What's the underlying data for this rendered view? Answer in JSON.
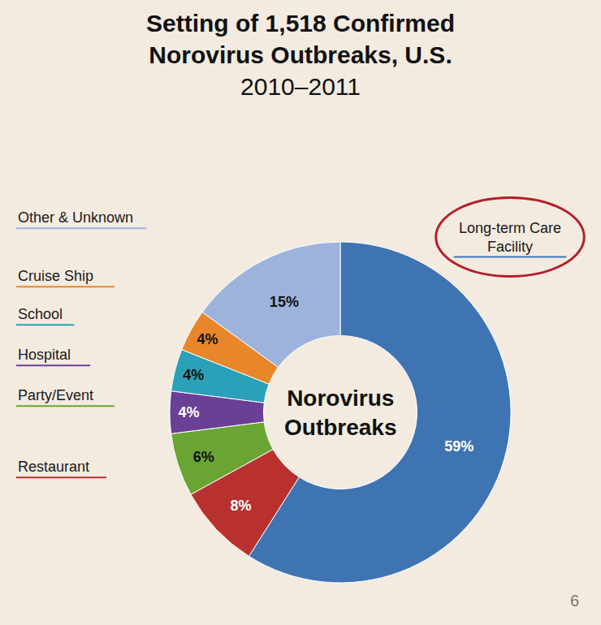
{
  "chart_data": {
    "type": "pie",
    "title": "Setting of 1,518 Confirmed Norovirus Outbreaks, U.S.",
    "subtitle": "2010–2011",
    "center_text": "Norovirus Outbreaks",
    "categories": [
      "Long-term Care Facility",
      "Restaurant",
      "Party/Event",
      "Hospital",
      "School",
      "Cruise Ship",
      "Other & Unknown"
    ],
    "values": [
      59,
      8,
      6,
      4,
      4,
      4,
      15
    ],
    "value_labels": [
      "59%",
      "8%",
      "6%",
      "4%",
      "4%",
      "4%",
      "15%"
    ],
    "colors": [
      "#3f74b3",
      "#b8312f",
      "#6aa533",
      "#6a3f96",
      "#2aa1b8",
      "#e8862a",
      "#9cb3dc"
    ],
    "data_labels": true,
    "annotations": [
      "6"
    ]
  }
}
